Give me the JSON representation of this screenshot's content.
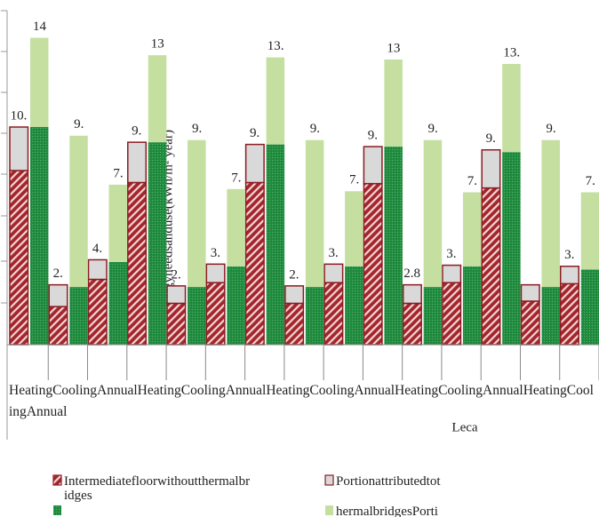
{
  "chart_data": {
    "type": "bar",
    "ylabel": "Energyneedsanduse(kWh/m² year)",
    "xlabel": "Leca",
    "categories": [
      "Heating",
      "Cooling",
      "Annual",
      "Heating",
      "Cooling",
      "Annual",
      "Heating",
      "Cooling",
      "Annual",
      "Heating",
      "Cooling",
      "Annual",
      "Heating",
      "Cooling",
      "Annual"
    ],
    "ylim": [
      0,
      15.7
    ],
    "series": [
      {
        "name": "Intermediatefloorwithoutthermalbridges",
        "color": "#a3262c",
        "pattern": "hatch",
        "stack": "left",
        "values": [
          8.0,
          1.75,
          3.0,
          7.45,
          1.9,
          2.85,
          7.45,
          1.9,
          2.85,
          7.4,
          1.9,
          2.85,
          7.2,
          2.0,
          2.8
        ]
      },
      {
        "name": "Portionattributedtot",
        "color": "#d9d9d9",
        "stack": "left",
        "values": [
          2.0,
          1.0,
          0.9,
          1.85,
          0.8,
          0.85,
          1.75,
          0.8,
          0.85,
          1.7,
          0.85,
          0.8,
          1.75,
          0.75,
          0.8
        ]
      },
      {
        "color": "#1f8a3e",
        "pattern": "dots",
        "stack": "right",
        "values": [
          10.0,
          2.65,
          3.8,
          9.3,
          2.65,
          3.6,
          9.2,
          2.65,
          3.6,
          9.1,
          2.65,
          3.6,
          8.85,
          2.65,
          3.45
        ]
      },
      {
        "name": "hermalbridgesPorti",
        "color": "#c4dfa0",
        "stack": "right",
        "values": [
          4.1,
          6.95,
          3.55,
          4.0,
          6.75,
          3.55,
          4.0,
          6.75,
          3.45,
          4.0,
          6.75,
          3.4,
          4.05,
          6.75,
          3.55
        ]
      }
    ],
    "left_labels": [
      "10.",
      "2.",
      "4.",
      "9.",
      "2.",
      "3.",
      "9.",
      "2.",
      "3.",
      "9.",
      "2.8",
      "3.",
      "9.",
      null,
      "3."
    ],
    "right_labels": [
      "14",
      "9.",
      "7.",
      "13",
      "9.",
      "7.",
      "13.",
      "9.",
      "7.",
      "13",
      "9.",
      "7.",
      "13.",
      "9.",
      "7."
    ]
  }
}
